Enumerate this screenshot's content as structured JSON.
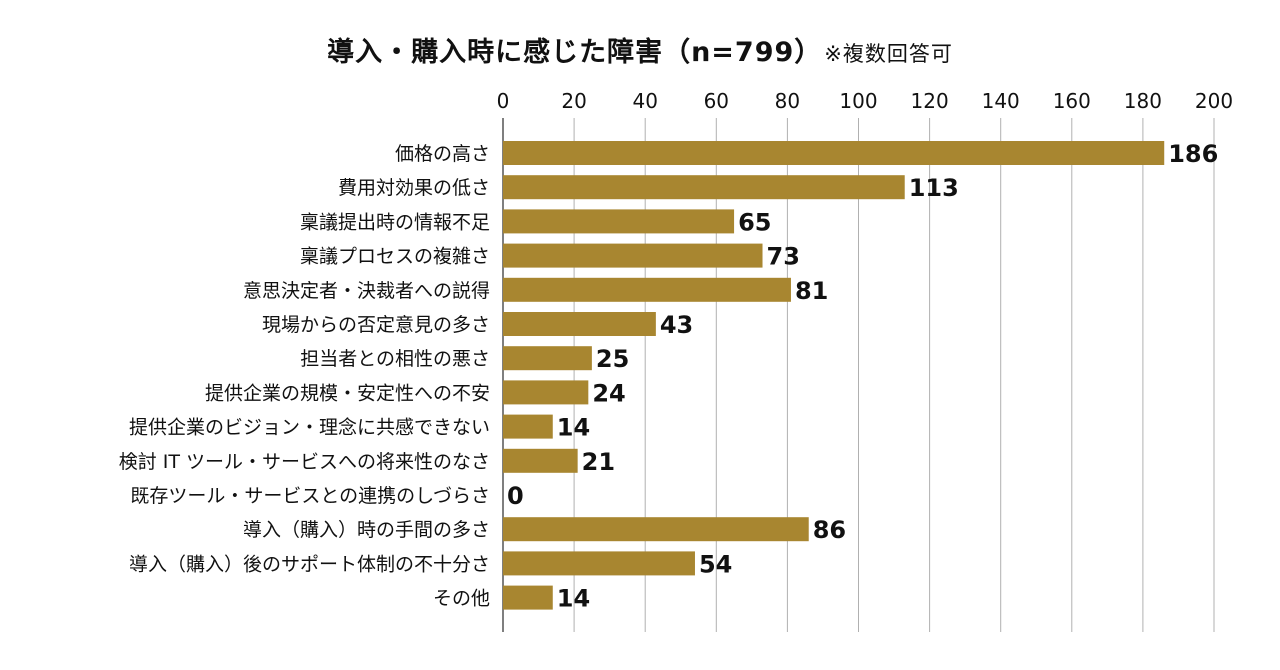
{
  "chart_data": {
    "type": "bar",
    "orientation": "horizontal",
    "title": "導入・購入時に感じた障害（n=799）",
    "title_note": "※複数回答可",
    "categories": [
      "価格の高さ",
      "費用対効果の低さ",
      "稟議提出時の情報不足",
      "稟議プロセスの複雑さ",
      "意思決定者・決裁者への説得",
      "現場からの否定意見の多さ",
      "担当者との相性の悪さ",
      "提供企業の規模・安定性への不安",
      "提供企業のビジョン・理念に共感できない",
      "検討 IT ツール・サービスへの将来性のなさ",
      "既存ツール・サービスとの連携のしづらさ",
      "導入（購入）時の手間の多さ",
      "導入（購入）後のサポート体制の不十分さ",
      "その他"
    ],
    "values": [
      186,
      113,
      65,
      73,
      81,
      43,
      25,
      24,
      14,
      21,
      0,
      86,
      54,
      14
    ],
    "xlim": [
      0,
      200
    ],
    "x_ticks": [
      "0",
      "20",
      "40",
      "60",
      "80",
      "100",
      "120",
      "140",
      "160",
      "180",
      "200"
    ],
    "axis_position": "top",
    "grid": true,
    "bar_color": "#a88630",
    "grid_color": "#b0b0b0"
  }
}
